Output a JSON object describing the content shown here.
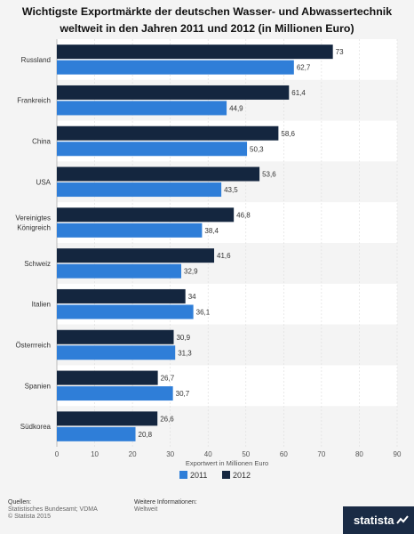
{
  "title": "Wichtigste Exportmärkte der deutschen Wasser- und Abwassertechnik weltweit in den Jahren 2011 und 2012 (in Millionen Euro)",
  "colors": {
    "s2011": "#2f7ed8",
    "s2012": "#14263f",
    "band": "#ffffff",
    "grid": "#dcdcdc"
  },
  "chart_data": {
    "type": "bar",
    "orientation": "horizontal",
    "title": "Wichtigste Exportmärkte der deutschen Wasser- und Abwassertechnik weltweit in den Jahren 2011 und 2012 (in Millionen Euro)",
    "categories": [
      [
        "Russland"
      ],
      [
        "Frankreich"
      ],
      [
        "China"
      ],
      [
        "USA"
      ],
      [
        "Vereinigtes",
        "Königreich"
      ],
      [
        "Schweiz"
      ],
      [
        "Italien"
      ],
      [
        "Österrreich"
      ],
      [
        "Spanien"
      ],
      [
        "Südkorea"
      ]
    ],
    "series": [
      {
        "name": "2012",
        "values": [
          73,
          61.4,
          58.6,
          53.6,
          46.8,
          41.6,
          34,
          30.9,
          26.7,
          26.6
        ],
        "labels": [
          "73",
          "61,4",
          "58,6",
          "53,6",
          "46,8",
          "41,6",
          "34",
          "30,9",
          "26,7",
          "26,6"
        ]
      },
      {
        "name": "2011",
        "values": [
          62.7,
          44.9,
          50.3,
          43.5,
          38.4,
          32.9,
          36.1,
          31.3,
          30.7,
          20.8
        ],
        "labels": [
          "62,7",
          "44,9",
          "50,3",
          "43,5",
          "38,4",
          "32,9",
          "36,1",
          "31,3",
          "30,7",
          "20,8"
        ]
      }
    ],
    "xlabel": "Exportwert in Millionen Euro",
    "xlim": [
      0,
      90
    ],
    "xticks": [
      0,
      10,
      20,
      30,
      40,
      50,
      60,
      70,
      80,
      90
    ],
    "grid": true,
    "legend": {
      "position": "bottom-left",
      "items": [
        "2011",
        "2012"
      ]
    }
  },
  "footer": {
    "sources_heading": "Quellen:",
    "sources_line1": "Statistisches Bundesamt; VDMA",
    "sources_line2": "© Statista 2015",
    "info_heading": "Weitere Informationen:",
    "info_line1": "Weltweit"
  },
  "brand": "statista"
}
